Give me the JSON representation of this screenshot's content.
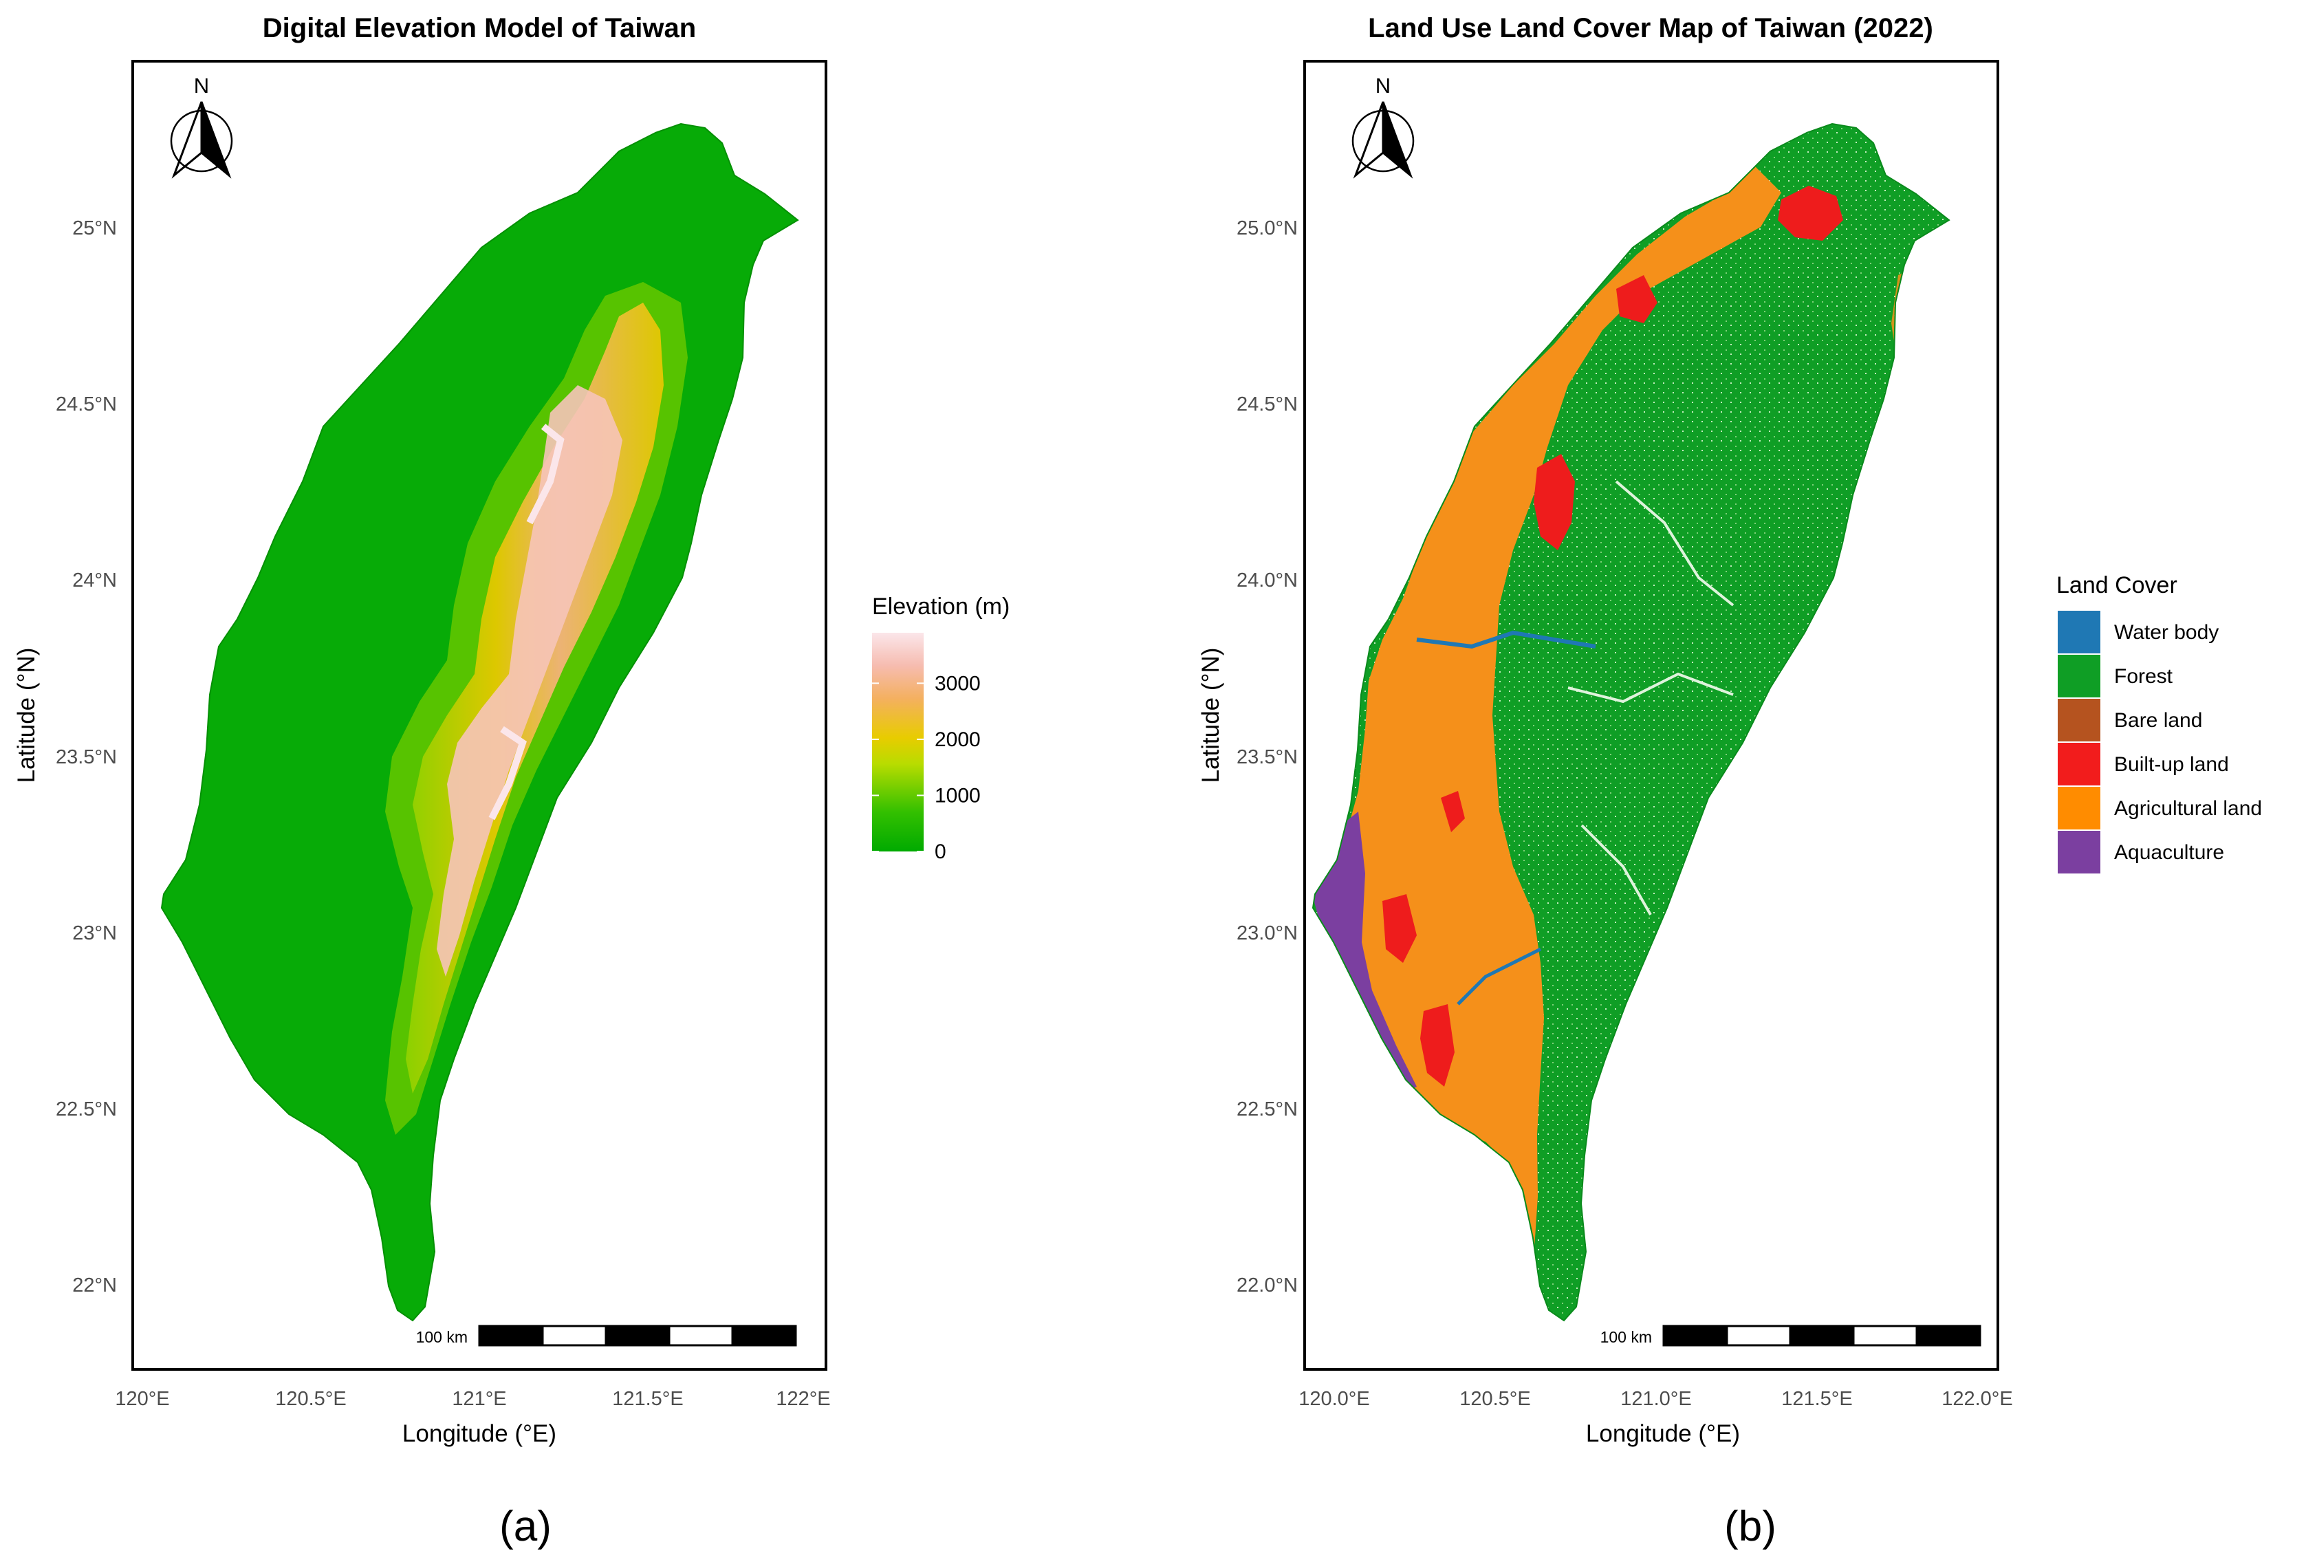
{
  "panels": [
    {
      "title": "Digital Elevation Model of Taiwan",
      "caption": "(a)",
      "x_ticks": [
        "120°E",
        "120.5°E",
        "121°E",
        "121.5°E",
        "122°E"
      ],
      "y_ticks": [
        "22°N",
        "22.5°N",
        "23°N",
        "23.5°N",
        "24°N",
        "24.5°N",
        "25°N"
      ],
      "xlabel": "Longitude (°E)",
      "ylabel": "Latitude (°N)",
      "north_label": "N",
      "scalebar_label": "100 km",
      "legend": {
        "title": "Elevation (m)",
        "type": "continuous",
        "range_m": [
          0,
          3900
        ],
        "ticks": [
          "3000",
          "2000",
          "1000",
          "0"
        ],
        "tick_values": [
          3000,
          2000,
          1000,
          0
        ],
        "colors": [
          "#00aa00",
          "#33c000",
          "#b8dc00",
          "#e8cc00",
          "#f4b060",
          "#f6bcb0",
          "#fbe6ea"
        ]
      }
    },
    {
      "title": "Land Use Land Cover Map of Taiwan (2022)",
      "caption": "(b)",
      "x_ticks": [
        "120.0°E",
        "120.5°E",
        "121.0°E",
        "121.5°E",
        "122.0°E"
      ],
      "y_ticks": [
        "22.0°N",
        "22.5°N",
        "23.0°N",
        "23.5°N",
        "24.0°N",
        "24.5°N",
        "25.0°N"
      ],
      "xlabel": "Longitude (°E)",
      "ylabel": "Latitude (°N)",
      "north_label": "N",
      "scalebar_label": "100 km",
      "legend": {
        "title": "Land Cover",
        "type": "categorical",
        "items": [
          {
            "label": "Water body",
            "color": "#1f78b4"
          },
          {
            "label": "Forest",
            "color": "#0f9e25"
          },
          {
            "label": "Bare land",
            "color": "#b5531f"
          },
          {
            "label": "Built-up land",
            "color": "#f21c1c"
          },
          {
            "label": "Agricultural land",
            "color": "#ff8c00"
          },
          {
            "label": "Aquaculture",
            "color": "#7b3fa0"
          }
        ]
      }
    }
  ],
  "colors": {
    "land_green": "#07ab07",
    "forest_green": "#0f9e25",
    "agriculture_orange": "#f5901a",
    "builtup_red": "#ee1c1c",
    "water_blue": "#1f78b4",
    "aquaculture_purple": "#7b3fa0",
    "frame": "#000000"
  }
}
